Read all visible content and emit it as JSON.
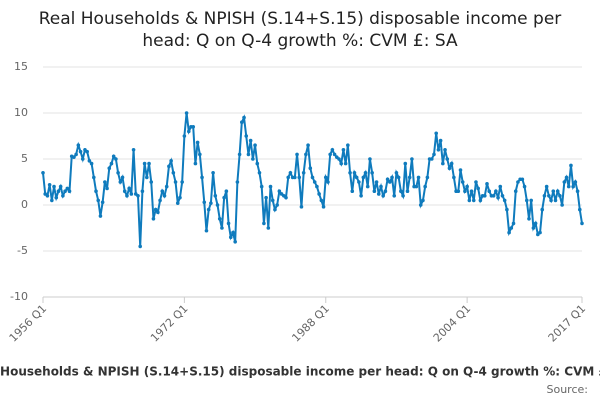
{
  "chart_data": {
    "type": "line",
    "title": "Real Households & NPISH (S.14+S.15) disposable income per head: Q on Q-4 growth %: CVM £: SA",
    "source": "Source:",
    "categories": [
      "1956 Q1",
      null,
      null,
      null,
      null,
      null,
      null,
      null,
      null,
      null,
      null,
      null,
      null,
      null,
      null,
      null,
      null,
      null,
      null,
      null,
      null,
      null,
      null,
      null,
      null,
      null,
      null,
      null,
      null,
      null,
      null,
      null,
      null,
      null,
      null,
      null,
      null,
      null,
      null,
      null,
      null,
      null,
      null,
      null,
      null,
      null,
      null,
      null,
      null,
      null,
      null,
      null,
      null,
      null,
      null,
      null,
      null,
      null,
      null,
      null,
      null,
      null,
      null,
      null,
      "1972 Q1",
      null,
      null,
      null,
      null,
      null,
      null,
      null,
      null,
      null,
      null,
      null,
      null,
      null,
      null,
      null,
      null,
      null,
      null,
      null,
      null,
      null,
      null,
      null,
      null,
      null,
      null,
      null,
      null,
      null,
      null,
      null,
      null,
      null,
      null,
      null,
      null,
      null,
      null,
      null,
      null,
      null,
      null,
      null,
      null,
      null,
      null,
      null,
      null,
      null,
      null,
      null,
      null,
      null,
      null,
      null,
      null,
      null,
      null,
      null,
      null,
      null,
      null,
      null,
      "1988 Q1",
      null,
      null,
      null,
      null,
      null,
      null,
      null,
      null,
      null,
      null,
      null,
      null,
      null,
      null,
      null,
      null,
      null,
      null,
      null,
      null,
      null,
      null,
      null,
      null,
      null,
      null,
      null,
      null,
      null,
      null,
      null,
      null,
      null,
      null,
      null,
      null,
      null,
      null,
      null,
      null,
      null,
      null,
      null,
      null,
      null,
      null,
      null,
      null,
      null,
      null,
      null,
      null,
      null,
      null,
      null,
      null,
      null,
      null,
      null,
      null,
      null,
      null,
      null,
      "2004 Q1",
      null,
      null,
      null,
      null,
      null,
      null,
      null,
      null,
      null,
      null,
      null,
      null,
      null,
      null,
      null,
      null,
      null,
      null,
      null,
      null,
      null,
      null,
      null,
      null,
      null,
      null,
      null,
      null,
      null,
      null,
      null,
      null,
      null,
      null,
      null,
      null,
      null,
      null,
      null,
      null,
      null,
      null,
      null,
      null,
      null,
      null,
      null,
      null,
      null,
      null,
      null,
      "2017 Q1"
    ],
    "series": [
      {
        "name": "Real Households & NPISH (S.14+S.15) disposable income per head: Q on Q-4 growth %: CVM £: SA",
        "color": "#0f7bbd",
        "values": [
          3.5,
          1.2,
          1.0,
          2.2,
          0.5,
          2.0,
          0.8,
          1.5,
          2.0,
          1.0,
          1.5,
          1.8,
          1.5,
          5.3,
          5.2,
          5.5,
          6.5,
          5.8,
          5.0,
          6.0,
          5.8,
          4.8,
          4.5,
          3.0,
          1.5,
          0.5,
          -1.2,
          0.3,
          2.5,
          1.8,
          4.0,
          4.5,
          5.3,
          5.0,
          3.5,
          2.5,
          3.0,
          1.5,
          1.0,
          1.8,
          1.2,
          6.0,
          1.2,
          1.0,
          -4.5,
          1.5,
          4.5,
          3.0,
          4.5,
          2.5,
          -1.5,
          -0.5,
          -0.8,
          0.5,
          1.5,
          1.0,
          2.0,
          4.2,
          4.8,
          3.5,
          2.5,
          0.2,
          0.8,
          2.5,
          7.5,
          10.0,
          8.0,
          8.5,
          8.5,
          4.5,
          6.8,
          5.5,
          3.0,
          0.3,
          -2.8,
          -0.5,
          0.2,
          3.5,
          1.0,
          0.0,
          -1.5,
          -2.5,
          0.8,
          1.5,
          -2.0,
          -3.5,
          -3.0,
          -4.0,
          2.5,
          5.5,
          9.0,
          9.5,
          7.5,
          5.5,
          7.0,
          5.0,
          6.5,
          4.5,
          3.5,
          2.0,
          -2.0,
          0.8,
          -2.5,
          2.0,
          0.5,
          -0.5,
          0.0,
          1.5,
          1.2,
          1.0,
          0.8,
          3.0,
          3.5,
          3.0,
          3.0,
          5.5,
          3.0,
          -0.2,
          3.5,
          5.5,
          6.5,
          4.0,
          3.0,
          2.5,
          2.0,
          1.2,
          0.5,
          -0.2,
          3.0,
          2.5,
          5.5,
          6.0,
          5.5,
          5.2,
          5.0,
          4.5,
          6.0,
          4.5,
          6.5,
          3.5,
          1.5,
          3.5,
          3.0,
          2.5,
          1.0,
          3.0,
          3.5,
          2.0,
          5.0,
          3.5,
          1.5,
          2.5,
          1.2,
          2.0,
          1.0,
          1.5,
          2.8,
          2.5,
          3.0,
          1.0,
          3.5,
          3.0,
          1.5,
          1.0,
          4.5,
          1.5,
          3.0,
          5.0,
          2.0,
          2.0,
          3.0,
          0.0,
          0.5,
          2.0,
          3.0,
          5.0,
          5.0,
          5.5,
          7.8,
          6.0,
          7.0,
          4.5,
          6.0,
          5.0,
          4.0,
          4.5,
          3.0,
          1.5,
          1.5,
          3.8,
          2.5,
          1.5,
          2.0,
          0.5,
          1.5,
          0.5,
          2.5,
          1.8,
          0.5,
          1.0,
          1.0,
          2.3,
          1.5,
          1.0,
          1.0,
          1.5,
          0.8,
          2.0,
          1.0,
          0.5,
          -0.5,
          -3.0,
          -2.5,
          -2.0,
          1.5,
          2.5,
          2.8,
          2.8,
          2.0,
          0.5,
          -1.5,
          0.5,
          -2.5,
          -2.0,
          -3.2,
          -3.0,
          -0.5,
          1.0,
          2.0,
          1.0,
          0.5,
          1.5,
          0.5,
          1.5,
          1.0,
          0.0,
          2.5,
          3.0,
          2.0,
          4.3,
          2.0,
          2.5,
          1.5,
          -0.5,
          -2.0
        ]
      }
    ],
    "ylim": [
      -10,
      15
    ],
    "yticks": [
      15,
      10,
      5,
      0,
      -5,
      -10
    ],
    "grid": true
  }
}
